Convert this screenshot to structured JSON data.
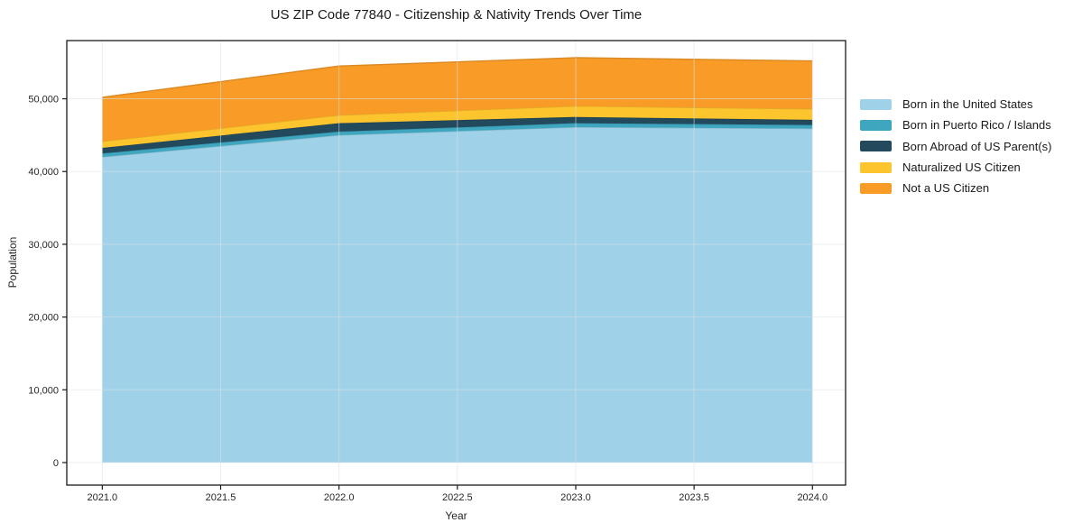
{
  "figure": {
    "background": "#ffffff"
  },
  "chart_data": {
    "type": "area",
    "stacked": true,
    "title": "US ZIP Code 77840 - Citizenship & Nativity Trends Over Time",
    "xlabel": "Year",
    "ylabel": "Population",
    "x": [
      2021,
      2022,
      2023,
      2024
    ],
    "series": [
      {
        "name": "Born in the United States",
        "color": "#9fd2e8",
        "values": [
          42000,
          45000,
          46100,
          45900
        ]
      },
      {
        "name": "Born in Puerto Rico / Islands",
        "color": "#3fa6c0",
        "values": [
          500,
          500,
          550,
          500
        ]
      },
      {
        "name": "Born Abroad of US Parent(s)",
        "color": "#22495c",
        "values": [
          750,
          1150,
          850,
          700
        ]
      },
      {
        "name": "Naturalized US Citizen",
        "color": "#fcc42d",
        "values": [
          900,
          1100,
          1500,
          1500
        ]
      },
      {
        "name": "Not a US Citizen",
        "color": "#f89b27",
        "values": [
          6050,
          6750,
          6650,
          6600
        ]
      }
    ],
    "totals": [
      50200,
      54500,
      55650,
      55200
    ],
    "x_ticks": {
      "values": [
        2021.0,
        2021.5,
        2022.0,
        2022.5,
        2023.0,
        2023.5,
        2024.0
      ],
      "labels": [
        "2021.0",
        "2021.5",
        "2022.0",
        "2022.5",
        "2023.0",
        "2023.5",
        "2024.0"
      ]
    },
    "y_ticks": {
      "values": [
        0,
        10000,
        20000,
        30000,
        40000,
        50000
      ],
      "labels": [
        "0",
        "10,000",
        "20,000",
        "30,000",
        "40,000",
        "50,000"
      ]
    },
    "xlim": [
      2020.85,
      2024.14
    ],
    "ylim": [
      -3100,
      58000
    ],
    "grid": true,
    "legend_position": "right"
  },
  "style_colors": {
    "grid": "#dde1e5",
    "spine": "#1a1a1a",
    "tick_text": "#262626"
  }
}
